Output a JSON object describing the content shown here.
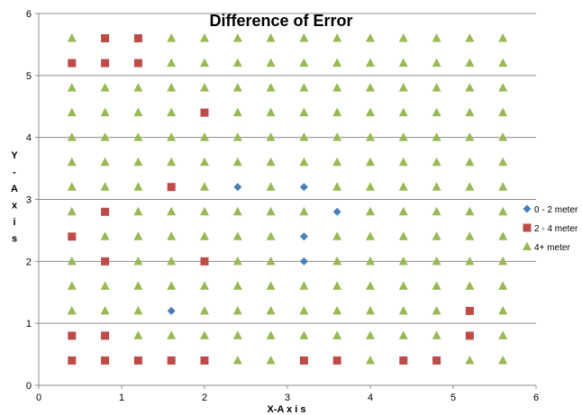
{
  "chart_data": {
    "type": "scatter",
    "title": "Difference of Error",
    "xlabel": "X-A x i s",
    "ylabel": "Y - A x i s",
    "xlim": [
      0,
      6
    ],
    "ylim": [
      0,
      6
    ],
    "xticks": [
      "0",
      "1",
      "2",
      "3",
      "4",
      "5",
      "6"
    ],
    "yticks": [
      "0",
      "1",
      "2",
      "3",
      "4",
      "5",
      "6"
    ],
    "grid": "horizontal",
    "legend_position": "right",
    "series": [
      {
        "name": "0 - 2 meter",
        "marker": "diamond",
        "color": "#4a7ebb",
        "points": [
          [
            2.4,
            3.2
          ],
          [
            3.2,
            3.2
          ],
          [
            3.6,
            2.8
          ],
          [
            3.2,
            2.4
          ],
          [
            3.2,
            2.0
          ],
          [
            1.6,
            1.2
          ]
        ]
      },
      {
        "name": "2 - 4 meter",
        "marker": "square",
        "color": "#be4b48",
        "points": [
          [
            0.8,
            5.6
          ],
          [
            1.2,
            5.6
          ],
          [
            0.4,
            5.2
          ],
          [
            0.8,
            5.2
          ],
          [
            1.2,
            5.2
          ],
          [
            2.0,
            4.4
          ],
          [
            1.6,
            3.2
          ],
          [
            0.8,
            2.8
          ],
          [
            0.4,
            2.4
          ],
          [
            0.8,
            2.0
          ],
          [
            2.0,
            2.0
          ],
          [
            5.2,
            1.2
          ],
          [
            0.4,
            0.8
          ],
          [
            0.8,
            0.8
          ],
          [
            5.2,
            0.8
          ],
          [
            0.4,
            0.4
          ],
          [
            0.8,
            0.4
          ],
          [
            1.2,
            0.4
          ],
          [
            1.6,
            0.4
          ],
          [
            2.0,
            0.4
          ],
          [
            3.2,
            0.4
          ],
          [
            3.6,
            0.4
          ],
          [
            4.4,
            0.4
          ],
          [
            4.8,
            0.4
          ]
        ]
      },
      {
        "name": "4+ meter",
        "marker": "triangle",
        "color": "#98b954",
        "grid_x": [
          0.4,
          0.8,
          1.2,
          1.6,
          2.0,
          2.4,
          2.8,
          3.2,
          3.6,
          4.0,
          4.4,
          4.8,
          5.2,
          5.6
        ],
        "grid_y": [
          0.4,
          0.8,
          1.2,
          1.6,
          2.0,
          2.4,
          2.8,
          3.2,
          3.6,
          4.0,
          4.4,
          4.8,
          5.2,
          5.6
        ],
        "fills_remaining_grid": true
      }
    ]
  }
}
